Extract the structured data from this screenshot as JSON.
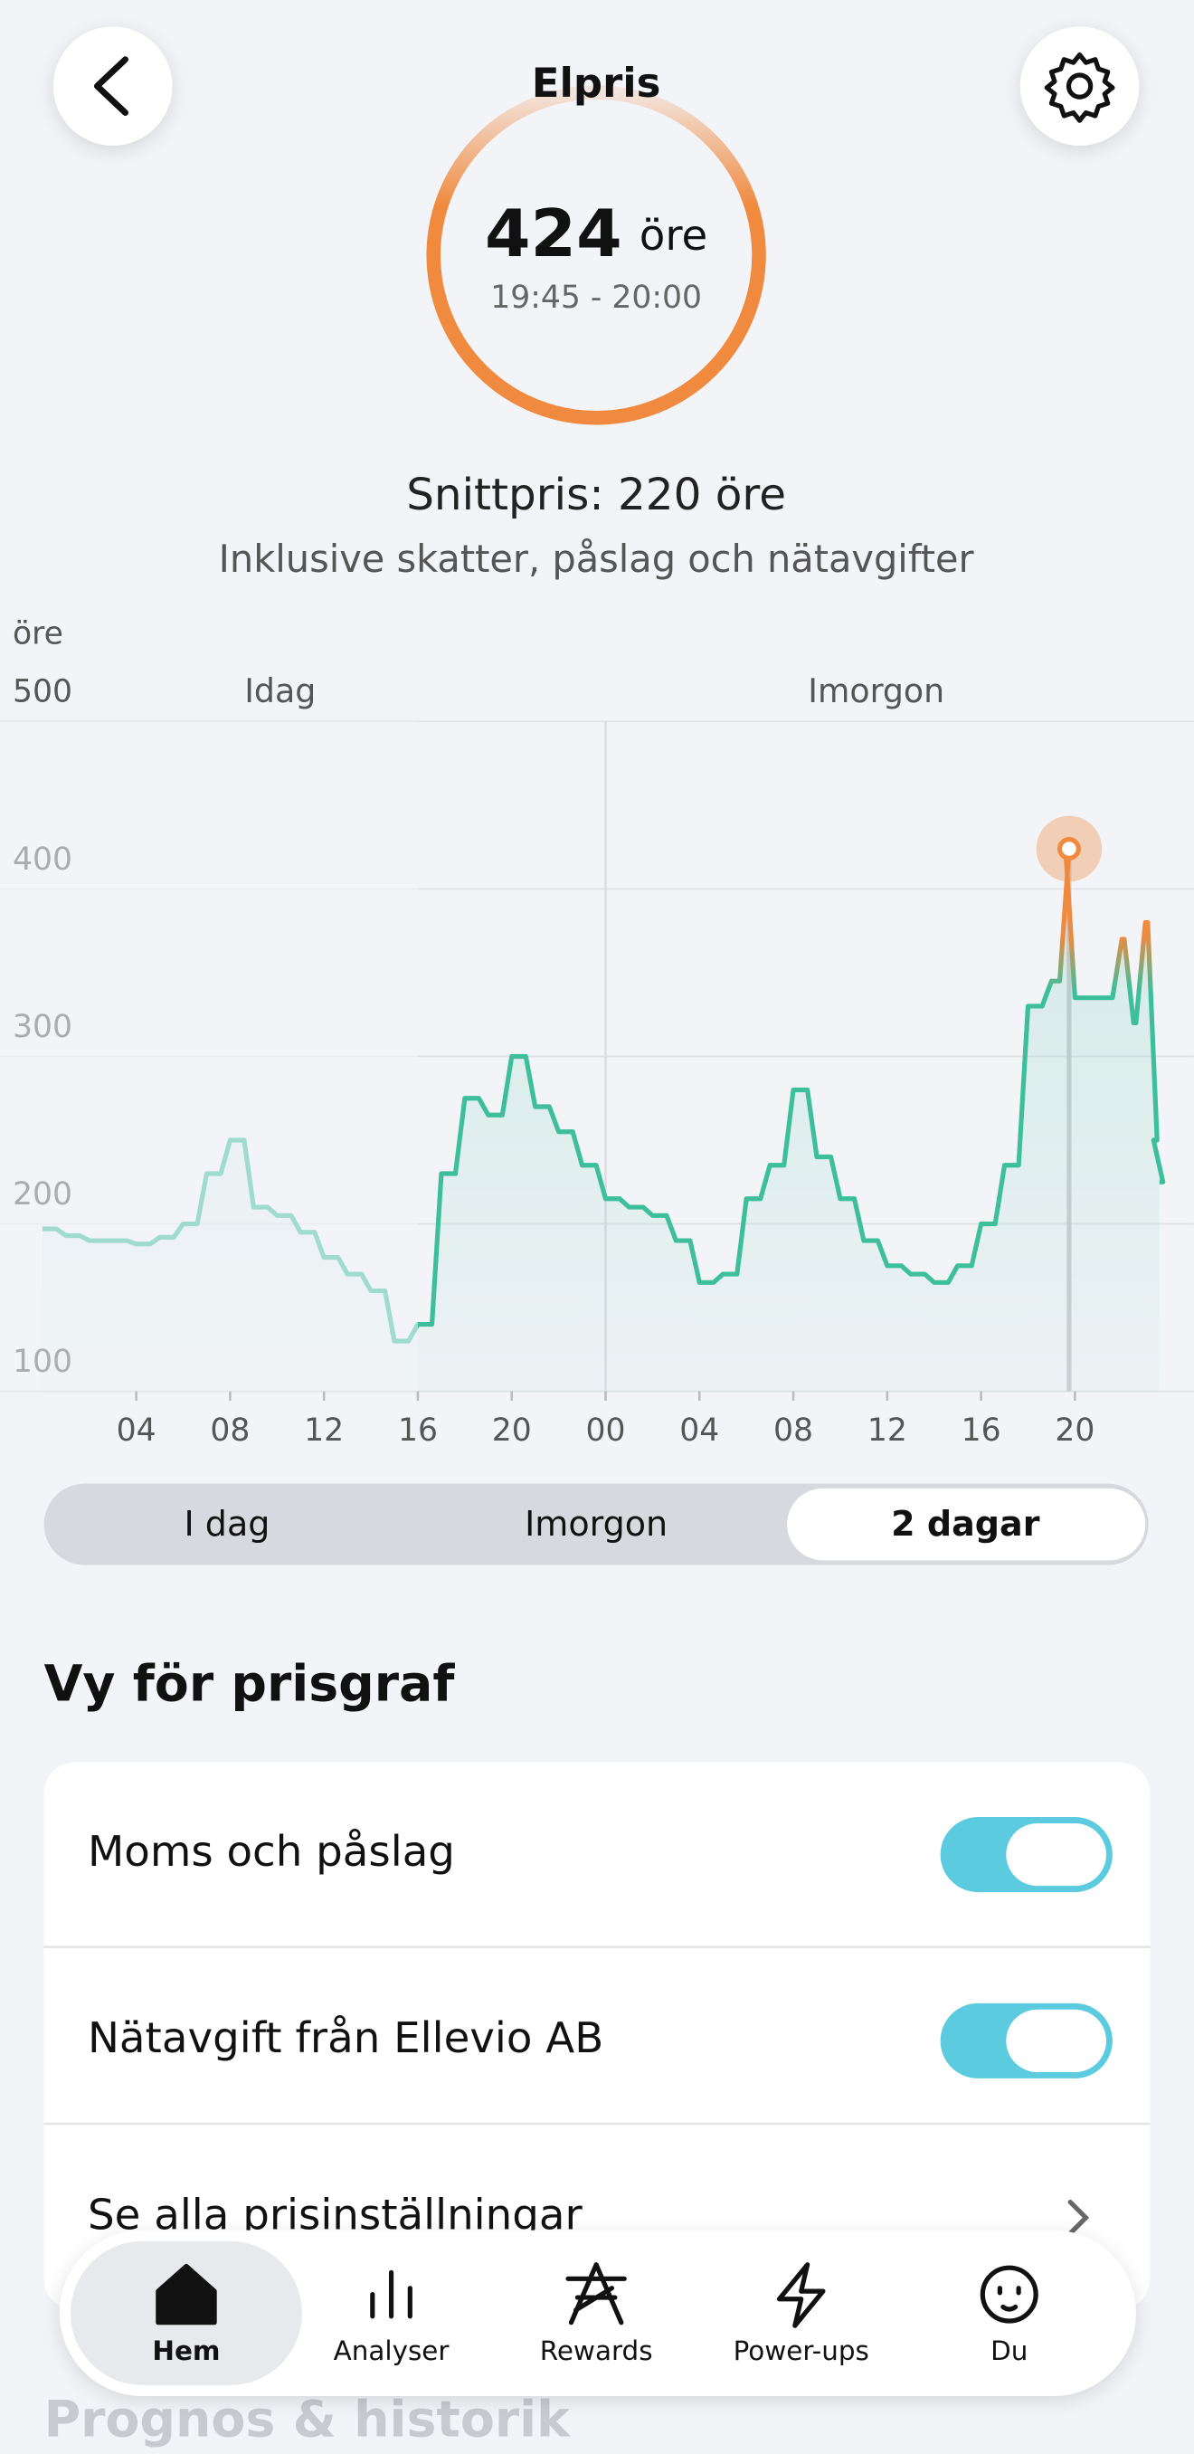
{
  "header": {
    "title": "Elpris"
  },
  "current": {
    "price": "424",
    "unit": "öre",
    "time": "19:45 - 20:00"
  },
  "summary": {
    "average": "Snittpris: 220 öre",
    "note": "Inklusive skatter, påslag och nätavgifter"
  },
  "chart_data": {
    "type": "line",
    "y_label": "öre",
    "day_labels": [
      "Idag",
      "Imorgon"
    ],
    "x": [
      0,
      1,
      2,
      3,
      4,
      5,
      6,
      7,
      8,
      9,
      10,
      11,
      12,
      13,
      14,
      15,
      16,
      17,
      18,
      19,
      20,
      21,
      22,
      23,
      24,
      25,
      26,
      27,
      28,
      29,
      30,
      31,
      32,
      33,
      34,
      35,
      36,
      37,
      38,
      39,
      40,
      41,
      42,
      43,
      43.75,
      44,
      45,
      46,
      46.5,
      47,
      47.5,
      47.75
    ],
    "values": [
      197,
      193,
      190,
      190,
      188,
      192,
      200,
      230,
      250,
      210,
      205,
      195,
      180,
      170,
      160,
      130,
      140,
      230,
      275,
      265,
      300,
      270,
      255,
      235,
      215,
      210,
      205,
      190,
      165,
      170,
      215,
      235,
      280,
      240,
      215,
      190,
      175,
      170,
      165,
      175,
      200,
      235,
      330,
      345,
      424,
      335,
      335,
      370,
      320,
      380,
      250,
      225
    ],
    "highlight_index": 44,
    "xlim": [
      0,
      48
    ],
    "ylim": [
      100,
      500
    ],
    "xticks": [
      {
        "value": 4,
        "label": "04"
      },
      {
        "value": 8,
        "label": "08"
      },
      12,
      16,
      20,
      {
        "value": 24,
        "label": "00"
      },
      {
        "value": 28,
        "label": "04"
      },
      {
        "value": 32,
        "label": "08"
      },
      {
        "value": 36,
        "label": "12"
      },
      {
        "value": 40,
        "label": "16"
      },
      {
        "value": 44,
        "label": "20"
      }
    ],
    "yticks": [
      100,
      200,
      300,
      400,
      500
    ],
    "grid": true,
    "color_high": "#ef8a3f",
    "color_low": "#3dbf9c"
  },
  "range_tabs": {
    "options": [
      "I dag",
      "Imorgon",
      "2 dagar"
    ],
    "selected": 2
  },
  "settings": {
    "title": "Vy för prisgraf",
    "items": [
      {
        "label": "Moms och påslag",
        "on": true
      },
      {
        "label": "Nätavgift från Ellevio AB",
        "on": true
      },
      {
        "label": "Se alla prisinställningar"
      }
    ]
  },
  "next_section": "Prognos & historik",
  "nav": {
    "items": [
      "Hem",
      "Analyser",
      "Rewards",
      "Power-ups",
      "Du"
    ],
    "selected": 0
  }
}
